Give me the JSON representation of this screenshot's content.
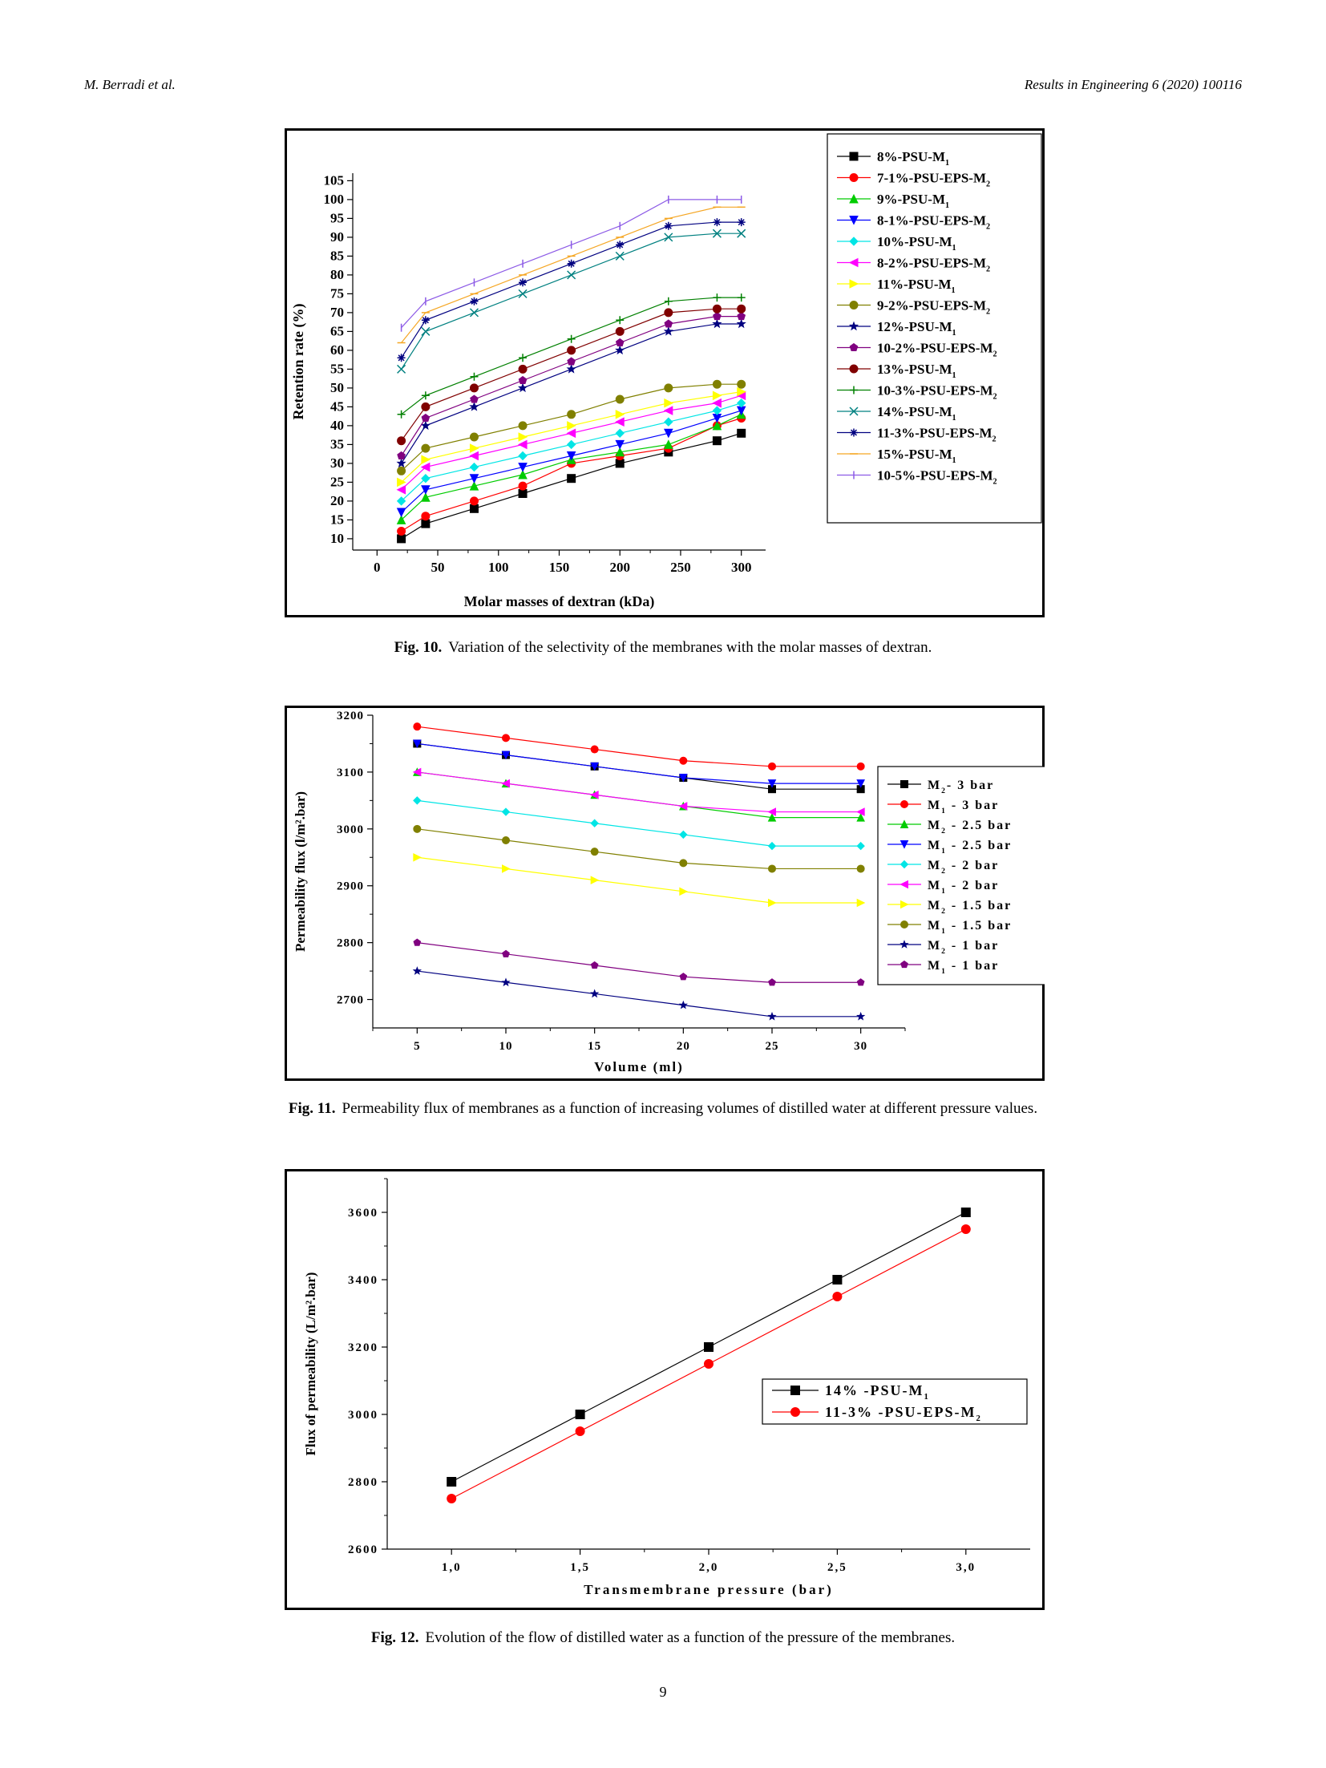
{
  "header": {
    "authors": "M. Berradi et al.",
    "journal": "Results in Engineering 6 (2020) 100116"
  },
  "page_number": "9",
  "figures": [
    {
      "label": "Fig. 10.",
      "caption": "Variation of the selectivity of the membranes with the molar masses of dextran."
    },
    {
      "label": "Fig. 11.",
      "caption": "Permeability flux of membranes as a function of increasing volumes of distilled water at different pressure values."
    },
    {
      "label": "Fig. 12.",
      "caption": "Evolution of the flow of distilled water as a function of the pressure of the membranes."
    }
  ],
  "chart_data": [
    {
      "type": "line",
      "xlabel": "Molar masses of dextran (kDa)",
      "ylabel": "Retention rate (%)",
      "xlim": [
        -20,
        320
      ],
      "ylim": [
        7,
        107
      ],
      "xticks": [
        0,
        50,
        100,
        150,
        200,
        250,
        300
      ],
      "yticks": [
        10,
        15,
        20,
        25,
        30,
        35,
        40,
        45,
        50,
        55,
        60,
        65,
        70,
        75,
        80,
        85,
        90,
        95,
        100,
        105
      ],
      "x": [
        20,
        40,
        80,
        120,
        160,
        200,
        240,
        280,
        300
      ],
      "legend_position": "right",
      "series": [
        {
          "name": "8%-PSU-M",
          "sub": "1",
          "color": "#000000",
          "marker": "square",
          "values": [
            10,
            14,
            18,
            22,
            26,
            30,
            33,
            36,
            38
          ]
        },
        {
          "name": "7-1%-PSU-EPS-M",
          "sub": "2",
          "color": "#ff0000",
          "marker": "circle",
          "values": [
            12,
            16,
            20,
            24,
            30,
            32,
            34,
            40,
            42
          ]
        },
        {
          "name": "9%-PSU-M",
          "sub": "1",
          "color": "#00cc00",
          "marker": "triangle-up",
          "values": [
            15,
            21,
            24,
            27,
            31,
            33,
            35,
            40,
            43
          ]
        },
        {
          "name": "8-1%-PSU-EPS-M",
          "sub": "2",
          "color": "#0000ff",
          "marker": "triangle-down",
          "values": [
            17,
            23,
            26,
            29,
            32,
            35,
            38,
            42,
            44
          ]
        },
        {
          "name": "10%-PSU-M",
          "sub": "1",
          "color": "#00e5e5",
          "marker": "diamond",
          "values": [
            20,
            26,
            29,
            32,
            35,
            38,
            41,
            44,
            46
          ]
        },
        {
          "name": "8-2%-PSU-EPS-M",
          "sub": "2",
          "color": "#ff00ff",
          "marker": "triangle-left",
          "values": [
            23,
            29,
            32,
            35,
            38,
            41,
            44,
            46,
            48
          ]
        },
        {
          "name": "11%-PSU-M",
          "sub": "1",
          "color": "#ffff00",
          "marker": "triangle-right",
          "values": [
            25,
            31,
            34,
            37,
            40,
            43,
            46,
            48,
            49
          ]
        },
        {
          "name": "9-2%-PSU-EPS-M",
          "sub": "2",
          "color": "#808000",
          "marker": "circle",
          "values": [
            28,
            34,
            37,
            40,
            43,
            47,
            50,
            51,
            51
          ]
        },
        {
          "name": "12%-PSU-M",
          "sub": "1",
          "color": "#000080",
          "marker": "star",
          "values": [
            30,
            40,
            45,
            50,
            55,
            60,
            65,
            67,
            67
          ]
        },
        {
          "name": "10-2%-PSU-EPS-M",
          "sub": "2",
          "color": "#800080",
          "marker": "pentagon",
          "values": [
            32,
            42,
            47,
            52,
            57,
            62,
            67,
            69,
            69
          ]
        },
        {
          "name": "13%-PSU-M",
          "sub": "1",
          "color": "#800000",
          "marker": "circle",
          "values": [
            36,
            45,
            50,
            55,
            60,
            65,
            70,
            71,
            71
          ]
        },
        {
          "name": "10-3%-PSU-EPS-M",
          "sub": "2",
          "color": "#008000",
          "marker": "plus",
          "values": [
            43,
            48,
            53,
            58,
            63,
            68,
            73,
            74,
            74
          ]
        },
        {
          "name": "14%-PSU-M",
          "sub": "1",
          "color": "#008080",
          "marker": "x",
          "values": [
            55,
            65,
            70,
            75,
            80,
            85,
            90,
            91,
            91
          ]
        },
        {
          "name": "11-3%-PSU-EPS-M",
          "sub": "2",
          "color": "#000080",
          "marker": "asterisk",
          "values": [
            58,
            68,
            73,
            78,
            83,
            88,
            93,
            94,
            94
          ]
        },
        {
          "name": "15%-PSU-M",
          "sub": "1",
          "color": "#f5a623",
          "marker": "dash",
          "values": [
            62,
            70,
            75,
            80,
            85,
            90,
            95,
            98,
            98
          ]
        },
        {
          "name": "10-5%-PSU-EPS-M",
          "sub": "2",
          "color": "#8c5ae6",
          "marker": "vbar",
          "values": [
            66,
            73,
            78,
            83,
            88,
            93,
            100,
            100,
            100
          ]
        }
      ]
    },
    {
      "type": "line",
      "xlabel": "Volume (ml)",
      "ylabel": "Permeability flux (l/m².bar)",
      "xlim": [
        2.5,
        32.5
      ],
      "ylim": [
        2650,
        3200
      ],
      "xticks": [
        5,
        10,
        15,
        20,
        25,
        30
      ],
      "yticks": [
        2700,
        2800,
        2900,
        3000,
        3100,
        3200
      ],
      "x": [
        5,
        10,
        15,
        20,
        25,
        30
      ],
      "legend_position": "right",
      "series": [
        {
          "name": "M",
          "sub": "2",
          "suffix": "- 3 bar",
          "color": "#000000",
          "marker": "square",
          "values": [
            3150,
            3130,
            3110,
            3090,
            3070,
            3070
          ]
        },
        {
          "name": "M",
          "sub": "1",
          "suffix": " - 3 bar",
          "color": "#ff0000",
          "marker": "circle",
          "values": [
            3180,
            3160,
            3140,
            3120,
            3110,
            3110
          ]
        },
        {
          "name": "M",
          "sub": "2",
          "suffix": " - 2.5 bar",
          "color": "#00cc00",
          "marker": "triangle-up",
          "values": [
            3100,
            3080,
            3060,
            3040,
            3020,
            3020
          ]
        },
        {
          "name": "M",
          "sub": "1",
          "suffix": " - 2.5 bar",
          "color": "#0000ff",
          "marker": "triangle-down",
          "values": [
            3150,
            3130,
            3110,
            3090,
            3080,
            3080
          ]
        },
        {
          "name": "M",
          "sub": "2",
          "suffix": " - 2 bar",
          "color": "#00e5e5",
          "marker": "diamond",
          "values": [
            3050,
            3030,
            3010,
            2990,
            2970,
            2970
          ]
        },
        {
          "name": "M",
          "sub": "1",
          "suffix": " - 2 bar",
          "color": "#ff00ff",
          "marker": "triangle-left",
          "values": [
            3100,
            3080,
            3060,
            3040,
            3030,
            3030
          ]
        },
        {
          "name": "M",
          "sub": "2",
          "suffix": " - 1.5 bar",
          "color": "#ffff00",
          "marker": "triangle-right",
          "values": [
            2950,
            2930,
            2910,
            2890,
            2870,
            2870
          ]
        },
        {
          "name": "M",
          "sub": "1",
          "suffix": " - 1.5 bar",
          "color": "#808000",
          "marker": "circle",
          "values": [
            3000,
            2980,
            2960,
            2940,
            2930,
            2930
          ]
        },
        {
          "name": "M",
          "sub": "2",
          "suffix": " - 1 bar",
          "color": "#000080",
          "marker": "star",
          "values": [
            2750,
            2730,
            2710,
            2690,
            2670,
            2670
          ]
        },
        {
          "name": "M",
          "sub": "1",
          "suffix": " - 1 bar",
          "color": "#800080",
          "marker": "pentagon",
          "values": [
            2800,
            2780,
            2760,
            2740,
            2730,
            2730
          ]
        }
      ]
    },
    {
      "type": "line",
      "xlabel": "Transmembrane pressure (bar)",
      "ylabel": "Flux of permeability (L/m².bar)",
      "xlim": [
        0.75,
        3.25
      ],
      "ylim": [
        2600,
        3700
      ],
      "xticks": [
        1.0,
        1.5,
        2.0,
        2.5,
        3.0
      ],
      "xtick_labels": [
        "1,0",
        "1,5",
        "2,0",
        "2,5",
        "3,0"
      ],
      "yticks": [
        2600,
        2800,
        3000,
        3200,
        3400,
        3600
      ],
      "x": [
        1.0,
        1.5,
        2.0,
        2.5,
        3.0
      ],
      "legend_position": "right",
      "series": [
        {
          "name": "14% -PSU-M",
          "sub": "1",
          "color": "#000000",
          "marker": "square",
          "values": [
            2800,
            3000,
            3200,
            3400,
            3600
          ]
        },
        {
          "name": "11-3% -PSU-EPS-M",
          "sub": "2",
          "color": "#ff0000",
          "marker": "circle",
          "values": [
            2750,
            2950,
            3150,
            3350,
            3550
          ]
        }
      ]
    }
  ]
}
